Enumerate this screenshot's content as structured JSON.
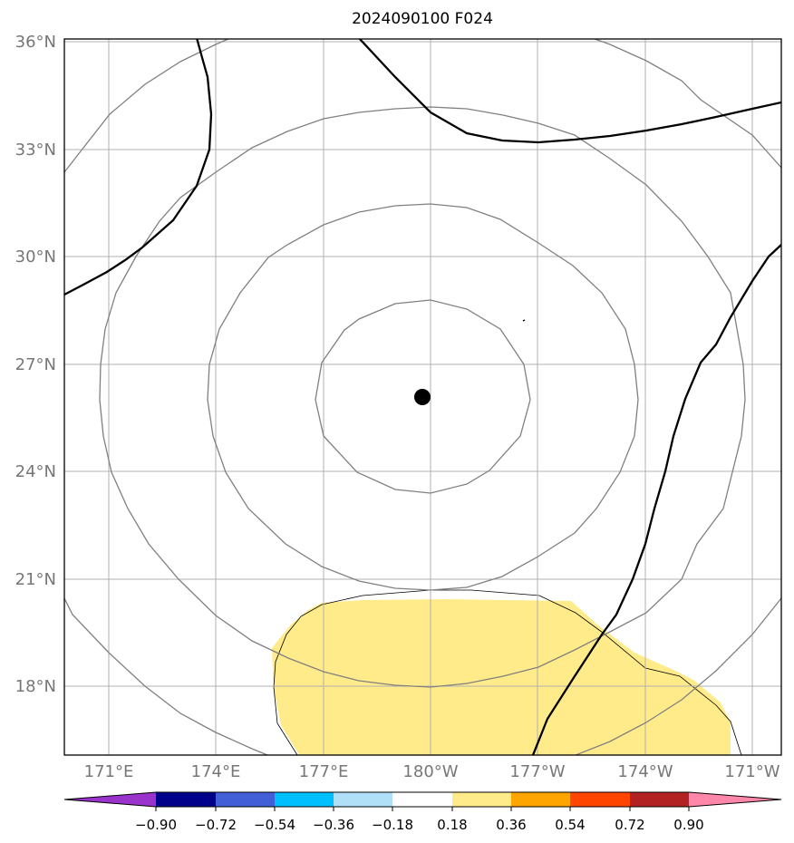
{
  "map": {
    "title": "2024090100 F024",
    "lat_labels": [
      "36°N",
      "33°N",
      "30°N",
      "27°N",
      "24°N",
      "21°N",
      "18°N"
    ],
    "lon_labels": [
      "171°E",
      "174°E",
      "177°E",
      "180°W",
      "177°W",
      "174°W",
      "171°W"
    ],
    "lat_values": [
      36,
      33,
      30,
      27,
      24,
      21,
      18
    ],
    "lon_values": [
      171,
      174,
      177,
      180,
      -177,
      -174,
      -171
    ],
    "center_marker": {
      "label": "storm-center",
      "lat": 26.0,
      "lon": 179.8
    },
    "colors": {
      "frame": "#000000",
      "grid": "#b0b0b0",
      "range_rings": "#808080",
      "contours": "#000000",
      "fill_positive": "#ffeb8a"
    }
  },
  "colorbar": {
    "tick_labels": [
      "−0.90",
      "−0.72",
      "−0.54",
      "−0.36",
      "−0.18",
      "0.18",
      "0.36",
      "0.54",
      "0.72",
      "0.90"
    ],
    "colors": [
      "#9933cc",
      "#00008b",
      "#4160d8",
      "#00bfff",
      "#b0e0f8",
      "#ffffff",
      "#ffeb8a",
      "#ffa500",
      "#ff4500",
      "#b22222",
      "#ff88aa"
    ]
  }
}
